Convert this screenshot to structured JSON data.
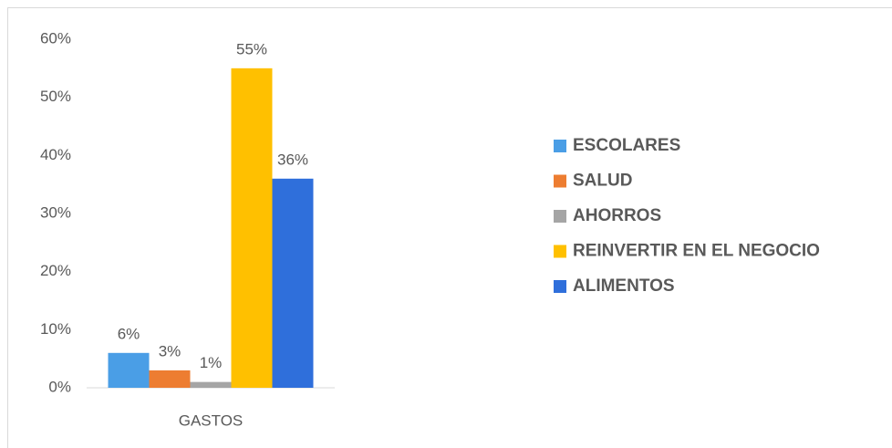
{
  "chart_data": {
    "type": "bar",
    "categories": [
      "GASTOS"
    ],
    "series": [
      {
        "name": "ESCOLARES",
        "color": "#4a9ee6",
        "values": [
          6
        ],
        "value_labels": [
          "6%"
        ]
      },
      {
        "name": "SALUD",
        "color": "#ed7d31",
        "values": [
          3
        ],
        "value_labels": [
          "3%"
        ]
      },
      {
        "name": "AHORROS",
        "color": "#a5a5a5",
        "values": [
          1
        ],
        "value_labels": [
          "1%"
        ]
      },
      {
        "name": "REINVERTIR EN EL NEGOCIO",
        "color": "#ffc000",
        "values": [
          55
        ],
        "value_labels": [
          "55%"
        ]
      },
      {
        "name": "ALIMENTOS",
        "color": "#2f6fdb",
        "values": [
          36
        ],
        "value_labels": [
          "36%"
        ]
      }
    ],
    "ylim": [
      0,
      60
    ],
    "yticks": [
      {
        "value": 0,
        "label": "0%"
      },
      {
        "value": 10,
        "label": "10%"
      },
      {
        "value": 20,
        "label": "20%"
      },
      {
        "value": 30,
        "label": "30%"
      },
      {
        "value": 40,
        "label": "40%"
      },
      {
        "value": 50,
        "label": "50%"
      },
      {
        "value": 60,
        "label": "60%"
      }
    ],
    "legend": "right"
  }
}
